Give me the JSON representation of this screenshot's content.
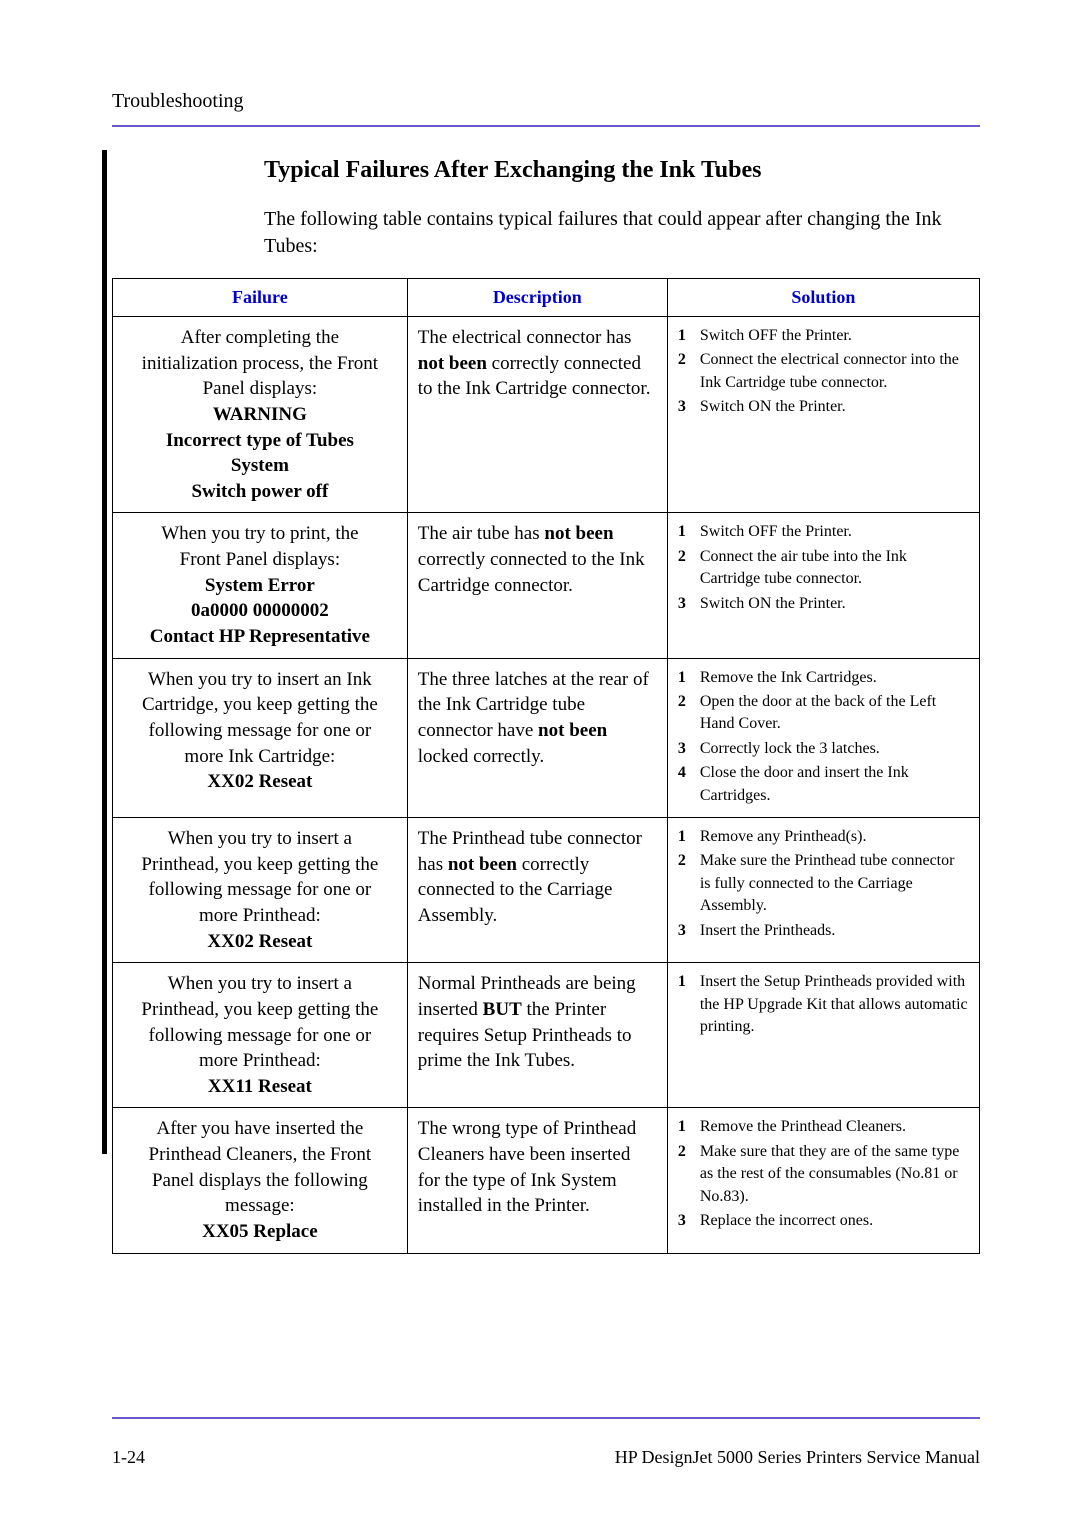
{
  "page": {
    "header_section": "Troubleshooting",
    "title": "Typical Failures After Exchanging the Ink Tubes",
    "intro": "The following table contains typical failures that could appear after changing the Ink Tubes:",
    "page_number": "1-24",
    "footer_right": "HP DesignJet 5000 Series Printers Service Manual"
  },
  "table": {
    "headers": {
      "failure": "Failure",
      "description": "Description",
      "solution": "Solution"
    },
    "rows": [
      {
        "failure_lines": [
          {
            "t": "After completing the",
            "b": false
          },
          {
            "t": "initialization process, the Front",
            "b": false
          },
          {
            "t": "Panel displays:",
            "b": false
          },
          {
            "t": "WARNING",
            "b": true
          },
          {
            "t": "Incorrect type of Tubes",
            "b": true
          },
          {
            "t": "System",
            "b": true
          },
          {
            "t": "Switch power off",
            "b": true
          }
        ],
        "desc_parts": [
          {
            "t": "The electrical connector has ",
            "b": false
          },
          {
            "t": "not been",
            "b": true
          },
          {
            "t": " correctly connected to the Ink Cartridge connector.",
            "b": false
          }
        ],
        "solutions": [
          "Switch OFF the Printer.",
          "Connect the electrical connector into the Ink Cartridge tube connector.",
          "Switch ON the Printer."
        ]
      },
      {
        "failure_lines": [
          {
            "t": "When you try to print, the",
            "b": false
          },
          {
            "t": "Front Panel displays:",
            "b": false
          },
          {
            "t": "System Error",
            "b": true
          },
          {
            "t": "0a0000 00000002",
            "b": true
          },
          {
            "t": "Contact HP Representative",
            "b": true
          }
        ],
        "desc_parts": [
          {
            "t": "The air tube has ",
            "b": false
          },
          {
            "t": "not been",
            "b": true
          },
          {
            "t": " correctly connected to the Ink Cartridge connector.",
            "b": false
          }
        ],
        "solutions": [
          "Switch OFF the Printer.",
          "Connect the air tube into the Ink Cartridge tube connector.",
          "Switch ON the Printer."
        ]
      },
      {
        "failure_lines": [
          {
            "t": "When you try to insert an Ink",
            "b": false
          },
          {
            "t": "Cartridge, you keep getting the",
            "b": false
          },
          {
            "t": "following message for one or",
            "b": false
          },
          {
            "t": "more Ink Cartridge:",
            "b": false
          },
          {
            "t": "XX02 Reseat",
            "b": true
          }
        ],
        "desc_parts": [
          {
            "t": "The three latches at the rear of the Ink Cartridge tube connector have ",
            "b": false
          },
          {
            "t": "not been",
            "b": true
          },
          {
            "t": " locked correctly.",
            "b": false
          }
        ],
        "solutions": [
          "Remove the Ink Cartridges.",
          "Open the door at the back of the Left Hand Cover.",
          "Correctly lock the 3 latches.",
          "Close the door and insert the Ink Cartridges."
        ]
      },
      {
        "failure_lines": [
          {
            "t": "When you try to insert a",
            "b": false
          },
          {
            "t": "Printhead, you keep getting the",
            "b": false
          },
          {
            "t": "following message for one or",
            "b": false
          },
          {
            "t": "more Printhead:",
            "b": false
          },
          {
            "t": "XX02 Reseat",
            "b": true
          }
        ],
        "desc_parts": [
          {
            "t": "The Printhead tube connector has ",
            "b": false
          },
          {
            "t": "not been",
            "b": true
          },
          {
            "t": " correctly connected to the Carriage Assembly.",
            "b": false
          }
        ],
        "solutions": [
          "Remove any Printhead(s).",
          "Make sure the Printhead tube connector is fully connected to the Carriage Assembly.",
          "Insert the Printheads."
        ]
      },
      {
        "failure_lines": [
          {
            "t": "When you try to insert a",
            "b": false
          },
          {
            "t": "Printhead, you keep getting the",
            "b": false
          },
          {
            "t": "following message for one or",
            "b": false
          },
          {
            "t": "more Printhead:",
            "b": false
          },
          {
            "t": "XX11 Reseat",
            "b": true
          }
        ],
        "desc_parts": [
          {
            "t": "Normal Printheads are being inserted ",
            "b": false
          },
          {
            "t": "BUT",
            "b": true
          },
          {
            "t": " the Printer requires Setup Printheads to prime the Ink Tubes.",
            "b": false
          }
        ],
        "solutions": [
          "Insert the Setup Printheads provided with the HP Upgrade Kit that allows automatic printing."
        ]
      },
      {
        "failure_lines": [
          {
            "t": "After you have inserted the",
            "b": false
          },
          {
            "t": "Printhead Cleaners, the Front",
            "b": false
          },
          {
            "t": "Panel displays the following",
            "b": false
          },
          {
            "t": "message:",
            "b": false
          },
          {
            "t": "XX05 Replace",
            "b": true
          }
        ],
        "desc_parts": [
          {
            "t": "The wrong type of Printhead Cleaners have been inserted for the type of Ink System installed in the Printer.",
            "b": false
          }
        ],
        "solutions": [
          "Remove the Printhead Cleaners.",
          "Make sure that they are of the same type as the rest of the consumables (No.81 or No.83).",
          "Replace the incorrect ones."
        ]
      }
    ]
  }
}
